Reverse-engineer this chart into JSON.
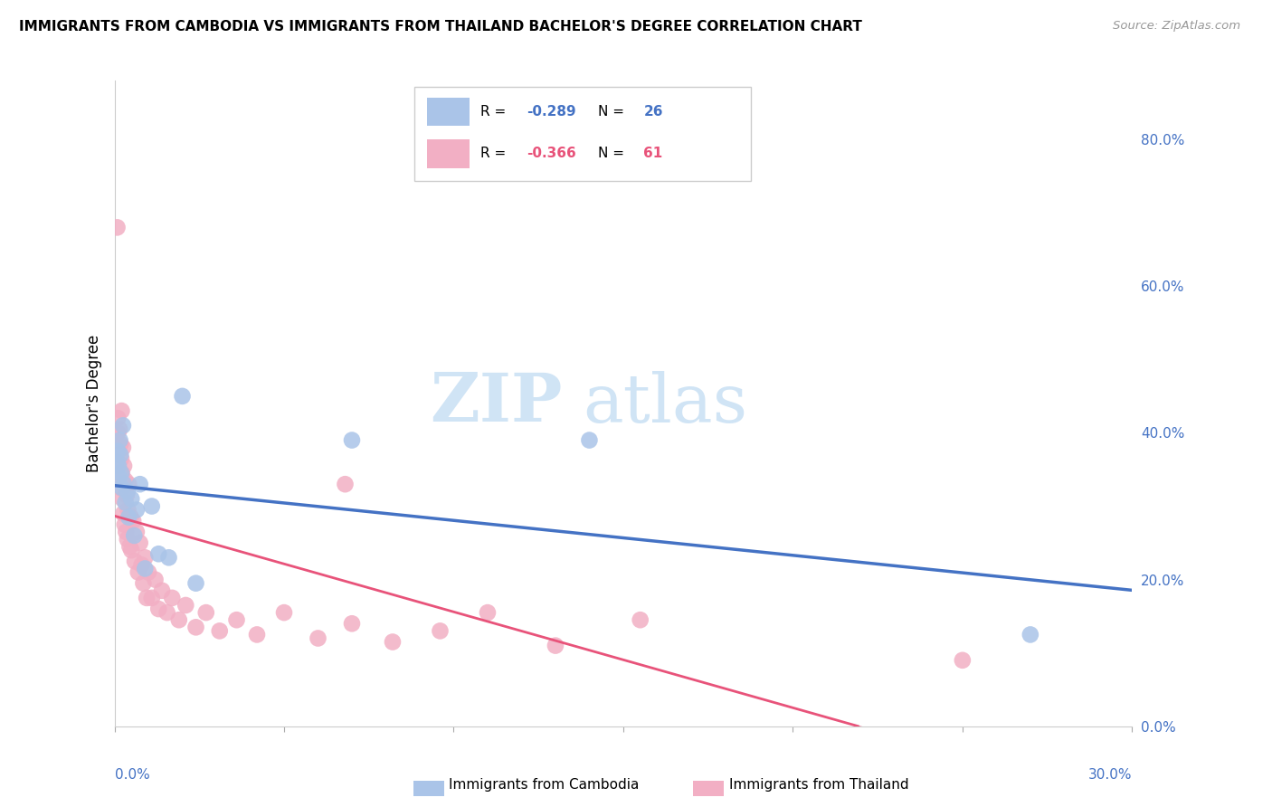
{
  "title": "IMMIGRANTS FROM CAMBODIA VS IMMIGRANTS FROM THAILAND BACHELOR'S DEGREE CORRELATION CHART",
  "source": "Source: ZipAtlas.com",
  "ylabel": "Bachelor's Degree",
  "right_yticks": [
    0.0,
    0.2,
    0.4,
    0.6,
    0.8
  ],
  "right_yticklabels": [
    "0.0%",
    "20.0%",
    "40.0%",
    "60.0%",
    "80.0%"
  ],
  "legend_r1": "-0.289",
  "legend_n1": "26",
  "legend_r2": "-0.366",
  "legend_n2": "61",
  "cambodia_x": [
    0.0008,
    0.001,
    0.0012,
    0.0014,
    0.0016,
    0.0018,
    0.002,
    0.0022,
    0.0025,
    0.0028,
    0.0032,
    0.0038,
    0.0042,
    0.005,
    0.0058,
    0.0065,
    0.0075,
    0.009,
    0.011,
    0.013,
    0.016,
    0.02,
    0.024,
    0.07,
    0.14,
    0.27
  ],
  "cambodia_y": [
    0.36,
    0.375,
    0.355,
    0.34,
    0.39,
    0.37,
    0.345,
    0.325,
    0.41,
    0.33,
    0.305,
    0.32,
    0.285,
    0.31,
    0.26,
    0.295,
    0.33,
    0.215,
    0.3,
    0.235,
    0.23,
    0.45,
    0.195,
    0.39,
    0.39,
    0.125
  ],
  "thailand_x": [
    0.0006,
    0.0008,
    0.001,
    0.0012,
    0.0013,
    0.0015,
    0.0016,
    0.0018,
    0.0019,
    0.002,
    0.0021,
    0.0022,
    0.0024,
    0.0025,
    0.0026,
    0.0028,
    0.003,
    0.0032,
    0.0034,
    0.0036,
    0.0038,
    0.004,
    0.0042,
    0.0045,
    0.0048,
    0.005,
    0.0055,
    0.006,
    0.0065,
    0.007,
    0.0075,
    0.008,
    0.0085,
    0.009,
    0.0095,
    0.01,
    0.011,
    0.012,
    0.013,
    0.014,
    0.0155,
    0.017,
    0.019,
    0.021,
    0.024,
    0.027,
    0.031,
    0.036,
    0.042,
    0.05,
    0.06,
    0.07,
    0.082,
    0.096,
    0.11,
    0.13,
    0.155,
    0.0008,
    0.001,
    0.068,
    0.25
  ],
  "thailand_y": [
    0.36,
    0.38,
    0.42,
    0.375,
    0.345,
    0.405,
    0.34,
    0.385,
    0.325,
    0.365,
    0.43,
    0.345,
    0.31,
    0.38,
    0.29,
    0.355,
    0.275,
    0.335,
    0.265,
    0.315,
    0.255,
    0.295,
    0.33,
    0.245,
    0.285,
    0.24,
    0.28,
    0.225,
    0.265,
    0.21,
    0.25,
    0.22,
    0.195,
    0.23,
    0.175,
    0.21,
    0.175,
    0.2,
    0.16,
    0.185,
    0.155,
    0.175,
    0.145,
    0.165,
    0.135,
    0.155,
    0.13,
    0.145,
    0.125,
    0.155,
    0.12,
    0.14,
    0.115,
    0.13,
    0.155,
    0.11,
    0.145,
    0.68,
    0.4,
    0.33,
    0.09
  ],
  "cambodia_color": "#aac4e8",
  "thailand_color": "#f2afc4",
  "cambodia_line_color": "#4472c4",
  "thailand_line_color": "#e8537a",
  "background_color": "#ffffff",
  "grid_color": "#d8d8d8",
  "axis_color": "#4472c4",
  "watermark_color": "#d0e4f5",
  "xlim": [
    0.0,
    0.3
  ],
  "ylim": [
    0.0,
    0.88
  ]
}
